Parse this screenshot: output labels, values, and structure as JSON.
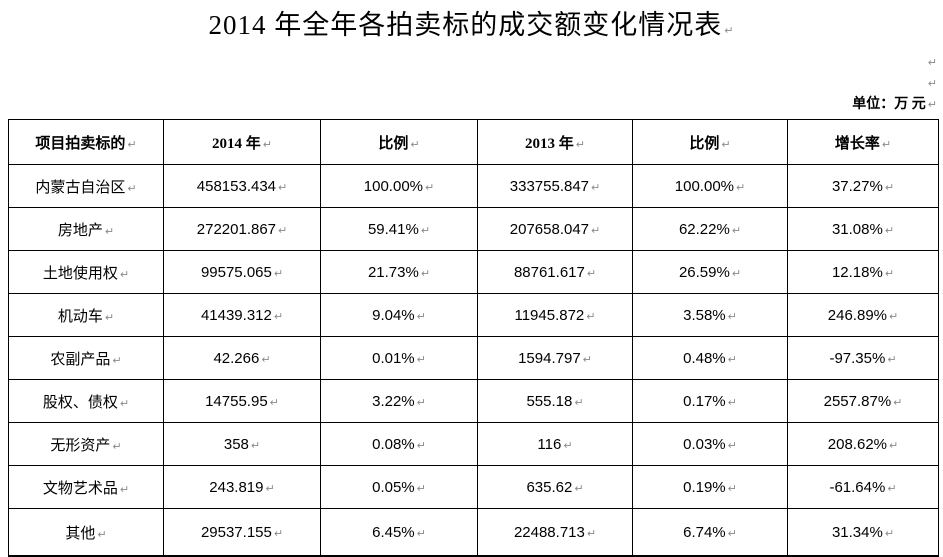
{
  "page": {
    "title": "2014 年全年各拍卖标的成交额变化情况表",
    "unit_label": "单位：万 元",
    "paragraph_mark": "↵"
  },
  "table": {
    "headers": [
      "项目拍卖标的",
      "2014 年",
      "比例",
      "2013 年",
      "比例",
      "增长率"
    ],
    "rows": [
      [
        "内蒙古自治区",
        "458153.434",
        "100.00%",
        "333755.847",
        "100.00%",
        "37.27%"
      ],
      [
        "房地产",
        "272201.867",
        "59.41%",
        "207658.047",
        "62.22%",
        "31.08%"
      ],
      [
        "土地使用权",
        "99575.065",
        "21.73%",
        "88761.617",
        "26.59%",
        "12.18%"
      ],
      [
        "机动车",
        "41439.312",
        "9.04%",
        "11945.872",
        "3.58%",
        "246.89%"
      ],
      [
        "农副产品",
        "42.266",
        "0.01%",
        "1594.797",
        "0.48%",
        "-97.35%"
      ],
      [
        "股权、债权",
        "14755.95",
        "3.22%",
        "555.18",
        "0.17%",
        "2557.87%"
      ],
      [
        "无形资产",
        "358",
        "0.08%",
        "116",
        "0.03%",
        "208.62%"
      ],
      [
        "文物艺术品",
        "243.819",
        "0.05%",
        "635.62",
        "0.19%",
        "-61.64%"
      ],
      [
        "其他",
        "29537.155",
        "6.45%",
        "22488.713",
        "6.74%",
        "31.34%"
      ]
    ]
  }
}
